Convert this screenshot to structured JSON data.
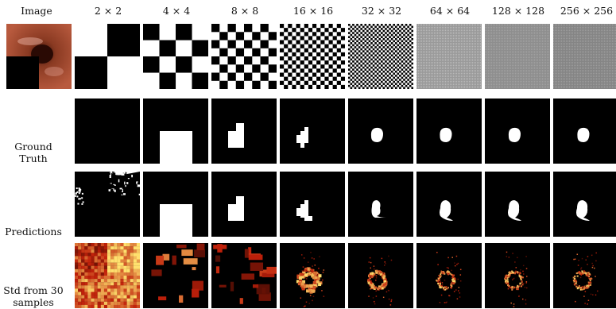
{
  "figure": {
    "header_image": "Image",
    "columns": [
      {
        "label": "2 × 2",
        "n": 2
      },
      {
        "label": "4 × 4",
        "n": 4
      },
      {
        "label": "8 × 8",
        "n": 8
      },
      {
        "label": "16 × 16",
        "n": 16
      },
      {
        "label": "32 × 32",
        "n": 32
      },
      {
        "label": "64 × 64",
        "n": 64
      },
      {
        "label": "128 × 128",
        "n": 128
      },
      {
        "label": "256 × 256",
        "n": 256
      }
    ],
    "row_labels": {
      "ground_truth": [
        "Ground",
        "Truth"
      ],
      "predictions": "Predictions",
      "std": [
        "Std from 30",
        "samples"
      ]
    }
  },
  "colors": {
    "mask_white": "#ffffff",
    "mask_black": "#000000",
    "heat_low": "#000000",
    "heat_mid": "#c0200a",
    "heat_high": "#ffe070",
    "tissue": "#b85a3e"
  }
}
